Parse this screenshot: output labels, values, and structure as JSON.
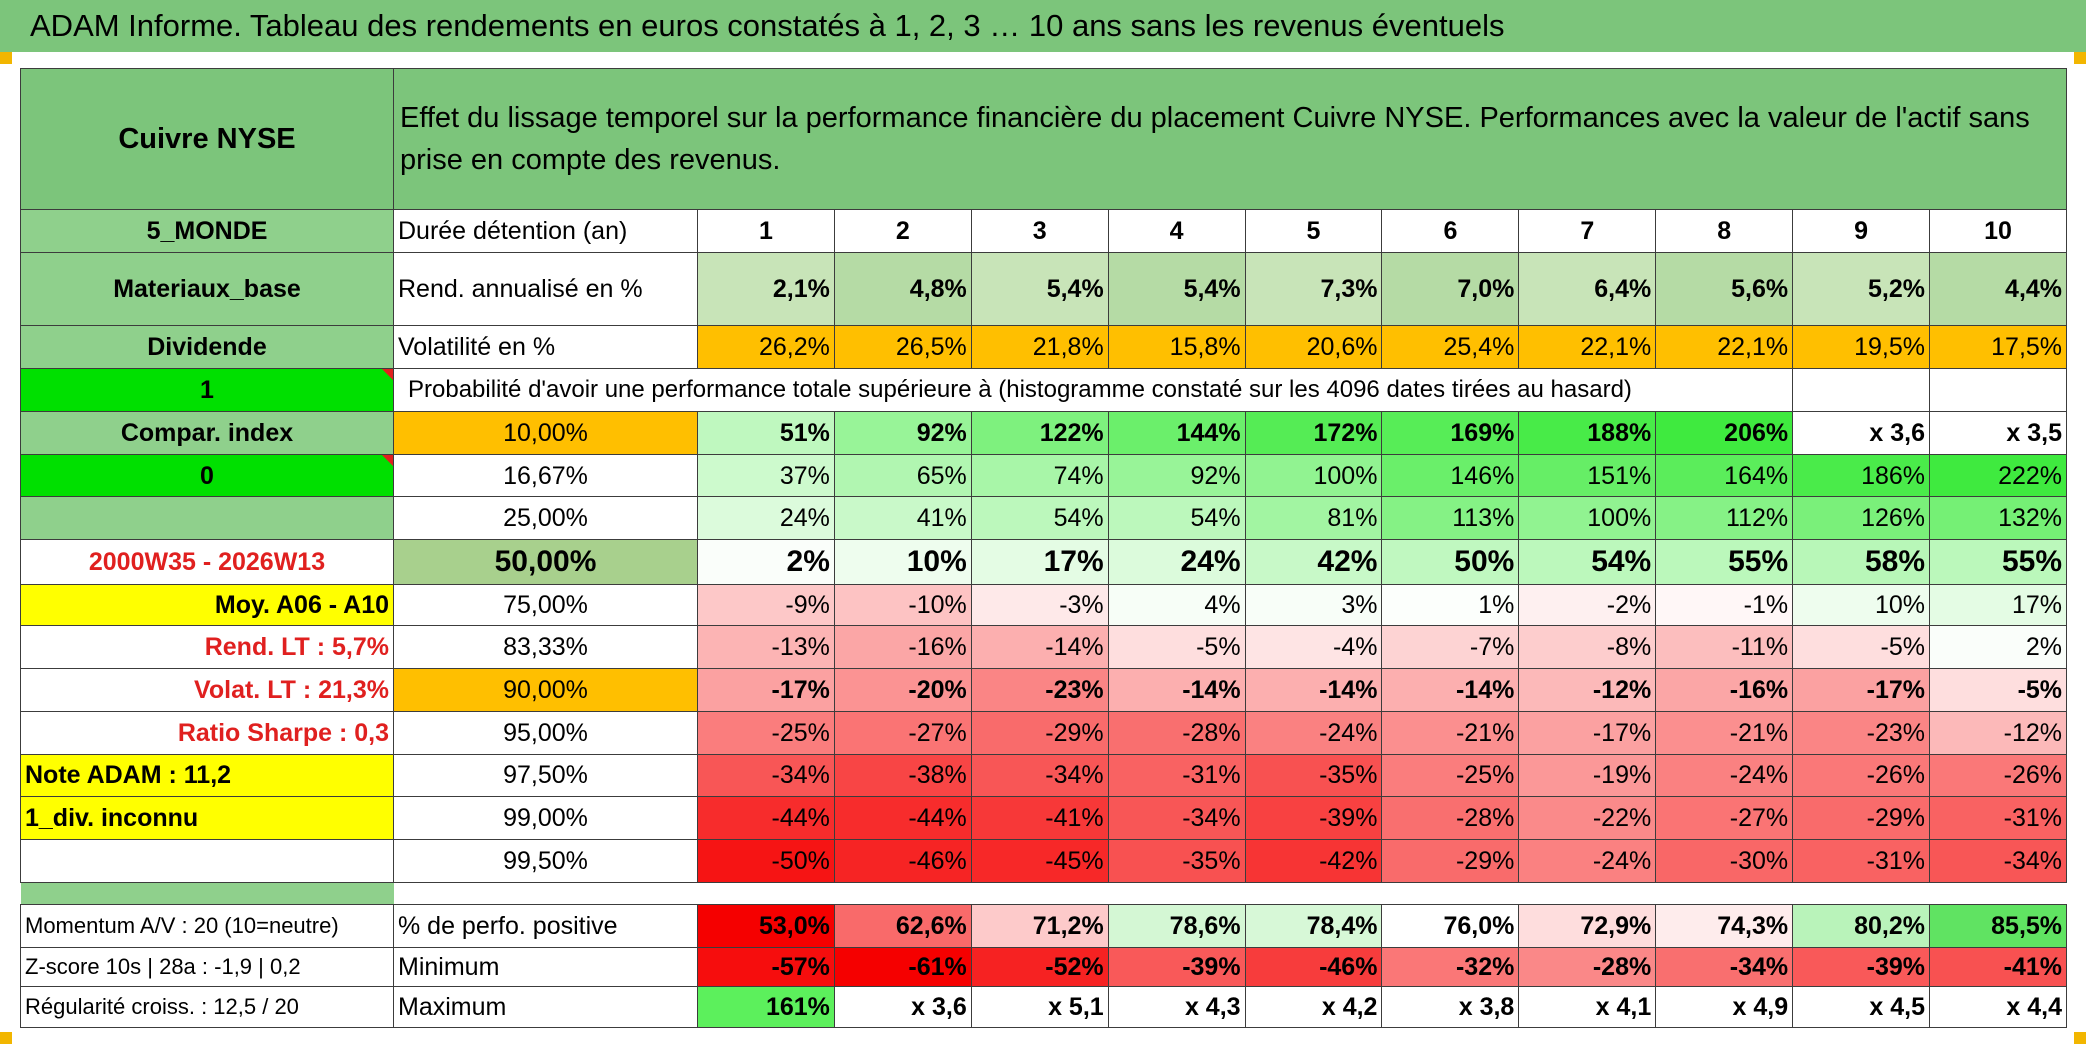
{
  "title": "ADAM Informe. Tableau des rendements en euros constatés à 1, 2, 3 … 10 ans sans les revenus éventuels",
  "colors": {
    "header_green": "#7cc57b",
    "row_green": "#8fd08c",
    "bright_green": "#00e000",
    "orange": "#ffbf00",
    "yellow": "#ffff00",
    "label_red": "#e0201f"
  },
  "side": {
    "asset_name": "Cuivre NYSE",
    "zone": "5_MONDE",
    "sector": "Materiaux_base",
    "income_type": "Dividende",
    "flag_1": "1",
    "compar_index": "Compar. index",
    "flag_0": "0",
    "period": "2000W35 - 2026W13",
    "avg_label": "Moy. A06 - A10",
    "rend_lt": "Rend. LT :   5,7%",
    "volat_lt": "Volat. LT :   21,3%",
    "sharpe": "Ratio Sharpe :    0,3",
    "note_adam": "Note ADAM : 11,2",
    "div_status": "1_div. inconnu",
    "momentum": "Momentum A/V : 20 (10=neutre)",
    "zscore": "Z-score 10s | 28a : -1,9 | 0,2",
    "regularite": "Régularité croiss. : 12,5 / 20"
  },
  "header_text": "Effet du lissage temporel sur la performance financière du placement Cuivre NYSE. Performances avec la valeur de l'actif sans prise en compte des revenus.",
  "row_labels": {
    "duration": "Durée détention (an)",
    "rend": "Rend. annualisé en %",
    "vol": "Volatilité en %",
    "prob": "Probabilité d'avoir une performance totale supérieure à (histogramme constaté sur les 4096 dates tirées au hasard)",
    "positive": "% de perfo. positive",
    "minimum": "Minimum",
    "maximum": "Maximum"
  },
  "years": [
    "1",
    "2",
    "3",
    "4",
    "5",
    "6",
    "7",
    "8",
    "9",
    "10"
  ],
  "rend": [
    "2,1%",
    "4,8%",
    "5,4%",
    "5,4%",
    "7,3%",
    "7,0%",
    "6,4%",
    "5,6%",
    "5,2%",
    "4,4%"
  ],
  "vol": [
    "26,2%",
    "26,5%",
    "21,8%",
    "15,8%",
    "20,6%",
    "25,4%",
    "22,1%",
    "22,1%",
    "19,5%",
    "17,5%"
  ],
  "prob_rows": [
    {
      "pct": "10,00%",
      "values": [
        "51%",
        "92%",
        "122%",
        "144%",
        "172%",
        "169%",
        "188%",
        "206%",
        "x 3,6",
        "x 3,5"
      ]
    },
    {
      "pct": "16,67%",
      "values": [
        "37%",
        "65%",
        "74%",
        "92%",
        "100%",
        "146%",
        "151%",
        "164%",
        "186%",
        "222%"
      ]
    },
    {
      "pct": "25,00%",
      "values": [
        "24%",
        "41%",
        "54%",
        "54%",
        "81%",
        "113%",
        "100%",
        "112%",
        "126%",
        "132%"
      ]
    },
    {
      "pct": "50,00%",
      "values": [
        "2%",
        "10%",
        "17%",
        "24%",
        "42%",
        "50%",
        "54%",
        "55%",
        "58%",
        "55%"
      ]
    },
    {
      "pct": "75,00%",
      "values": [
        "-9%",
        "-10%",
        "-3%",
        "4%",
        "3%",
        "1%",
        "-2%",
        "-1%",
        "10%",
        "17%"
      ]
    },
    {
      "pct": "83,33%",
      "values": [
        "-13%",
        "-16%",
        "-14%",
        "-5%",
        "-4%",
        "-7%",
        "-8%",
        "-11%",
        "-5%",
        "2%"
      ]
    },
    {
      "pct": "90,00%",
      "values": [
        "-17%",
        "-20%",
        "-23%",
        "-14%",
        "-14%",
        "-14%",
        "-12%",
        "-16%",
        "-17%",
        "-5%"
      ]
    },
    {
      "pct": "95,00%",
      "values": [
        "-25%",
        "-27%",
        "-29%",
        "-28%",
        "-24%",
        "-21%",
        "-17%",
        "-21%",
        "-23%",
        "-12%"
      ]
    },
    {
      "pct": "97,50%",
      "values": [
        "-34%",
        "-38%",
        "-34%",
        "-31%",
        "-35%",
        "-25%",
        "-19%",
        "-24%",
        "-26%",
        "-26%"
      ]
    },
    {
      "pct": "99,00%",
      "values": [
        "-44%",
        "-44%",
        "-41%",
        "-34%",
        "-39%",
        "-28%",
        "-22%",
        "-27%",
        "-29%",
        "-31%"
      ]
    },
    {
      "pct": "99,50%",
      "values": [
        "-50%",
        "-46%",
        "-45%",
        "-35%",
        "-42%",
        "-29%",
        "-24%",
        "-30%",
        "-31%",
        "-34%"
      ]
    }
  ],
  "positive": [
    "53,0%",
    "62,6%",
    "71,2%",
    "78,6%",
    "78,4%",
    "76,0%",
    "72,9%",
    "74,3%",
    "80,2%",
    "85,5%"
  ],
  "minimum": [
    "-57%",
    "-61%",
    "-52%",
    "-39%",
    "-46%",
    "-32%",
    "-28%",
    "-34%",
    "-39%",
    "-41%"
  ],
  "maximum": [
    "161%",
    "x 3,6",
    "x 5,1",
    "x 4,3",
    "x 4,2",
    "x 3,8",
    "x 4,1",
    "x 4,9",
    "x 4,5",
    "x 4,4"
  ]
}
